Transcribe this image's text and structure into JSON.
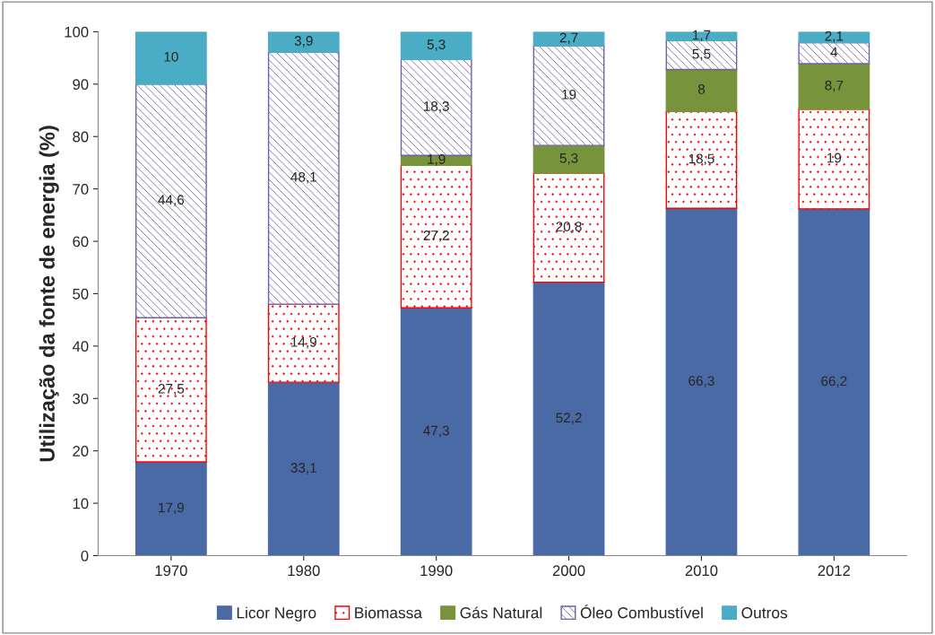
{
  "chart_data": {
    "type": "bar",
    "stacked": true,
    "ylabel": "Utilização da fonte de energia (%)",
    "categories": [
      "1970",
      "1980",
      "1990",
      "2000",
      "2010",
      "2012"
    ],
    "series": [
      {
        "name": "Licor Negro",
        "color": "#4a6aa5",
        "values": [
          17.9,
          33.1,
          47.3,
          52.2,
          66.3,
          66.2
        ],
        "value_labels": [
          "17,9",
          "33,1",
          "47,3",
          "52,2",
          "66,3",
          "66,2"
        ]
      },
      {
        "name": "Biomassa",
        "color": "#ff0000",
        "values": [
          27.5,
          14.9,
          27.2,
          20.8,
          18.5,
          19
        ],
        "value_labels": [
          "27,5",
          "14,9",
          "27,2",
          "20,8",
          "18,5",
          "19"
        ]
      },
      {
        "name": "Gás Natural",
        "color": "#77933c",
        "values": [
          null,
          null,
          1.9,
          5.3,
          8,
          8.7
        ],
        "value_labels": [
          null,
          null,
          "1,9",
          "5,3",
          "8",
          "8,7"
        ]
      },
      {
        "name": "Óleo Combustível",
        "color": "#7060a0",
        "values": [
          44.6,
          48.1,
          18.3,
          19,
          5.5,
          4
        ],
        "value_labels": [
          "44,6",
          "48,1",
          "18,3",
          "19",
          "5,5",
          "4"
        ]
      },
      {
        "name": "Outros",
        "color": "#4bacc6",
        "values": [
          10,
          3.9,
          5.3,
          2.7,
          1.7,
          2.1
        ],
        "value_labels": [
          "10",
          "3,9",
          "5,3",
          "2,7",
          "1,7",
          "2,1"
        ]
      }
    ],
    "ylim": [
      0,
      100
    ],
    "yticks": [
      0,
      10,
      20,
      30,
      40,
      50,
      60,
      70,
      80,
      90,
      100
    ],
    "grid": false,
    "legend": "bottom"
  }
}
